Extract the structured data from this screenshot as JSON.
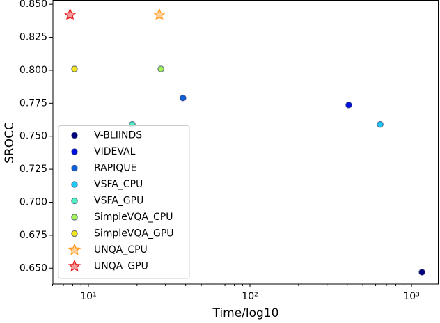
{
  "chart_data": {
    "type": "scatter",
    "xlabel": "Time/log10",
    "ylabel": "SROCC",
    "xscale": "log",
    "xlim": [
      6.03,
      1472
    ],
    "ylim": [
      0.638,
      0.853
    ],
    "xticks": [
      {
        "value": 10,
        "label": "10¹"
      },
      {
        "value": 100,
        "label": "10²"
      },
      {
        "value": 1000,
        "label": "10³"
      }
    ],
    "xminorticks": [
      6,
      7,
      8,
      9,
      20,
      30,
      40,
      50,
      60,
      70,
      80,
      90,
      200,
      300,
      400,
      500,
      600,
      700,
      800,
      900
    ],
    "yticks": [
      {
        "value": 0.65,
        "label": "0.650"
      },
      0.675,
      {
        "value": 0.7,
        "label": "0.700"
      },
      0.725,
      {
        "value": 0.75,
        "label": "0.750"
      },
      0.775,
      {
        "value": 0.8,
        "label": "0.800"
      },
      0.825,
      {
        "value": 0.85,
        "label": "0.850"
      }
    ],
    "legend": "lower left",
    "series": [
      {
        "name": "V-BLIINDS",
        "color": "#00007f",
        "marker": "circle",
        "x": [
          1161
        ],
        "values": [
          0.647
        ]
      },
      {
        "name": "VIDEVAL",
        "color": "#0010e0",
        "marker": "circle",
        "x": [
          409
        ],
        "values": [
          0.7737
        ]
      },
      {
        "name": "RAPIQUE",
        "color": "#1060d8",
        "marker": "circle",
        "x": [
          38.5
        ],
        "values": [
          0.779
        ]
      },
      {
        "name": "VSFA_CPU",
        "color": "#22c8f2",
        "marker": "circle",
        "x": [
          640
        ],
        "values": [
          0.759
        ]
      },
      {
        "name": "VSFA_GPU",
        "color": "#4ef0c0",
        "marker": "circle",
        "x": [
          18.7
        ],
        "values": [
          0.759
        ]
      },
      {
        "name": "SimpleVQA_CPU",
        "color": "#a6f25a",
        "marker": "circle",
        "x": [
          28.1
        ],
        "values": [
          0.801
        ]
      },
      {
        "name": "SimpleVQA_GPU",
        "color": "#f2e620",
        "marker": "circle",
        "x": [
          8.2
        ],
        "values": [
          0.801
        ]
      },
      {
        "name": "UNQA_CPU",
        "color": "#ff9a20",
        "marker": "star",
        "x": [
          27.5
        ],
        "values": [
          0.842
        ]
      },
      {
        "name": "UNQA_GPU",
        "color": "#e82020",
        "marker": "star",
        "x": [
          7.7
        ],
        "values": [
          0.842
        ]
      }
    ]
  }
}
